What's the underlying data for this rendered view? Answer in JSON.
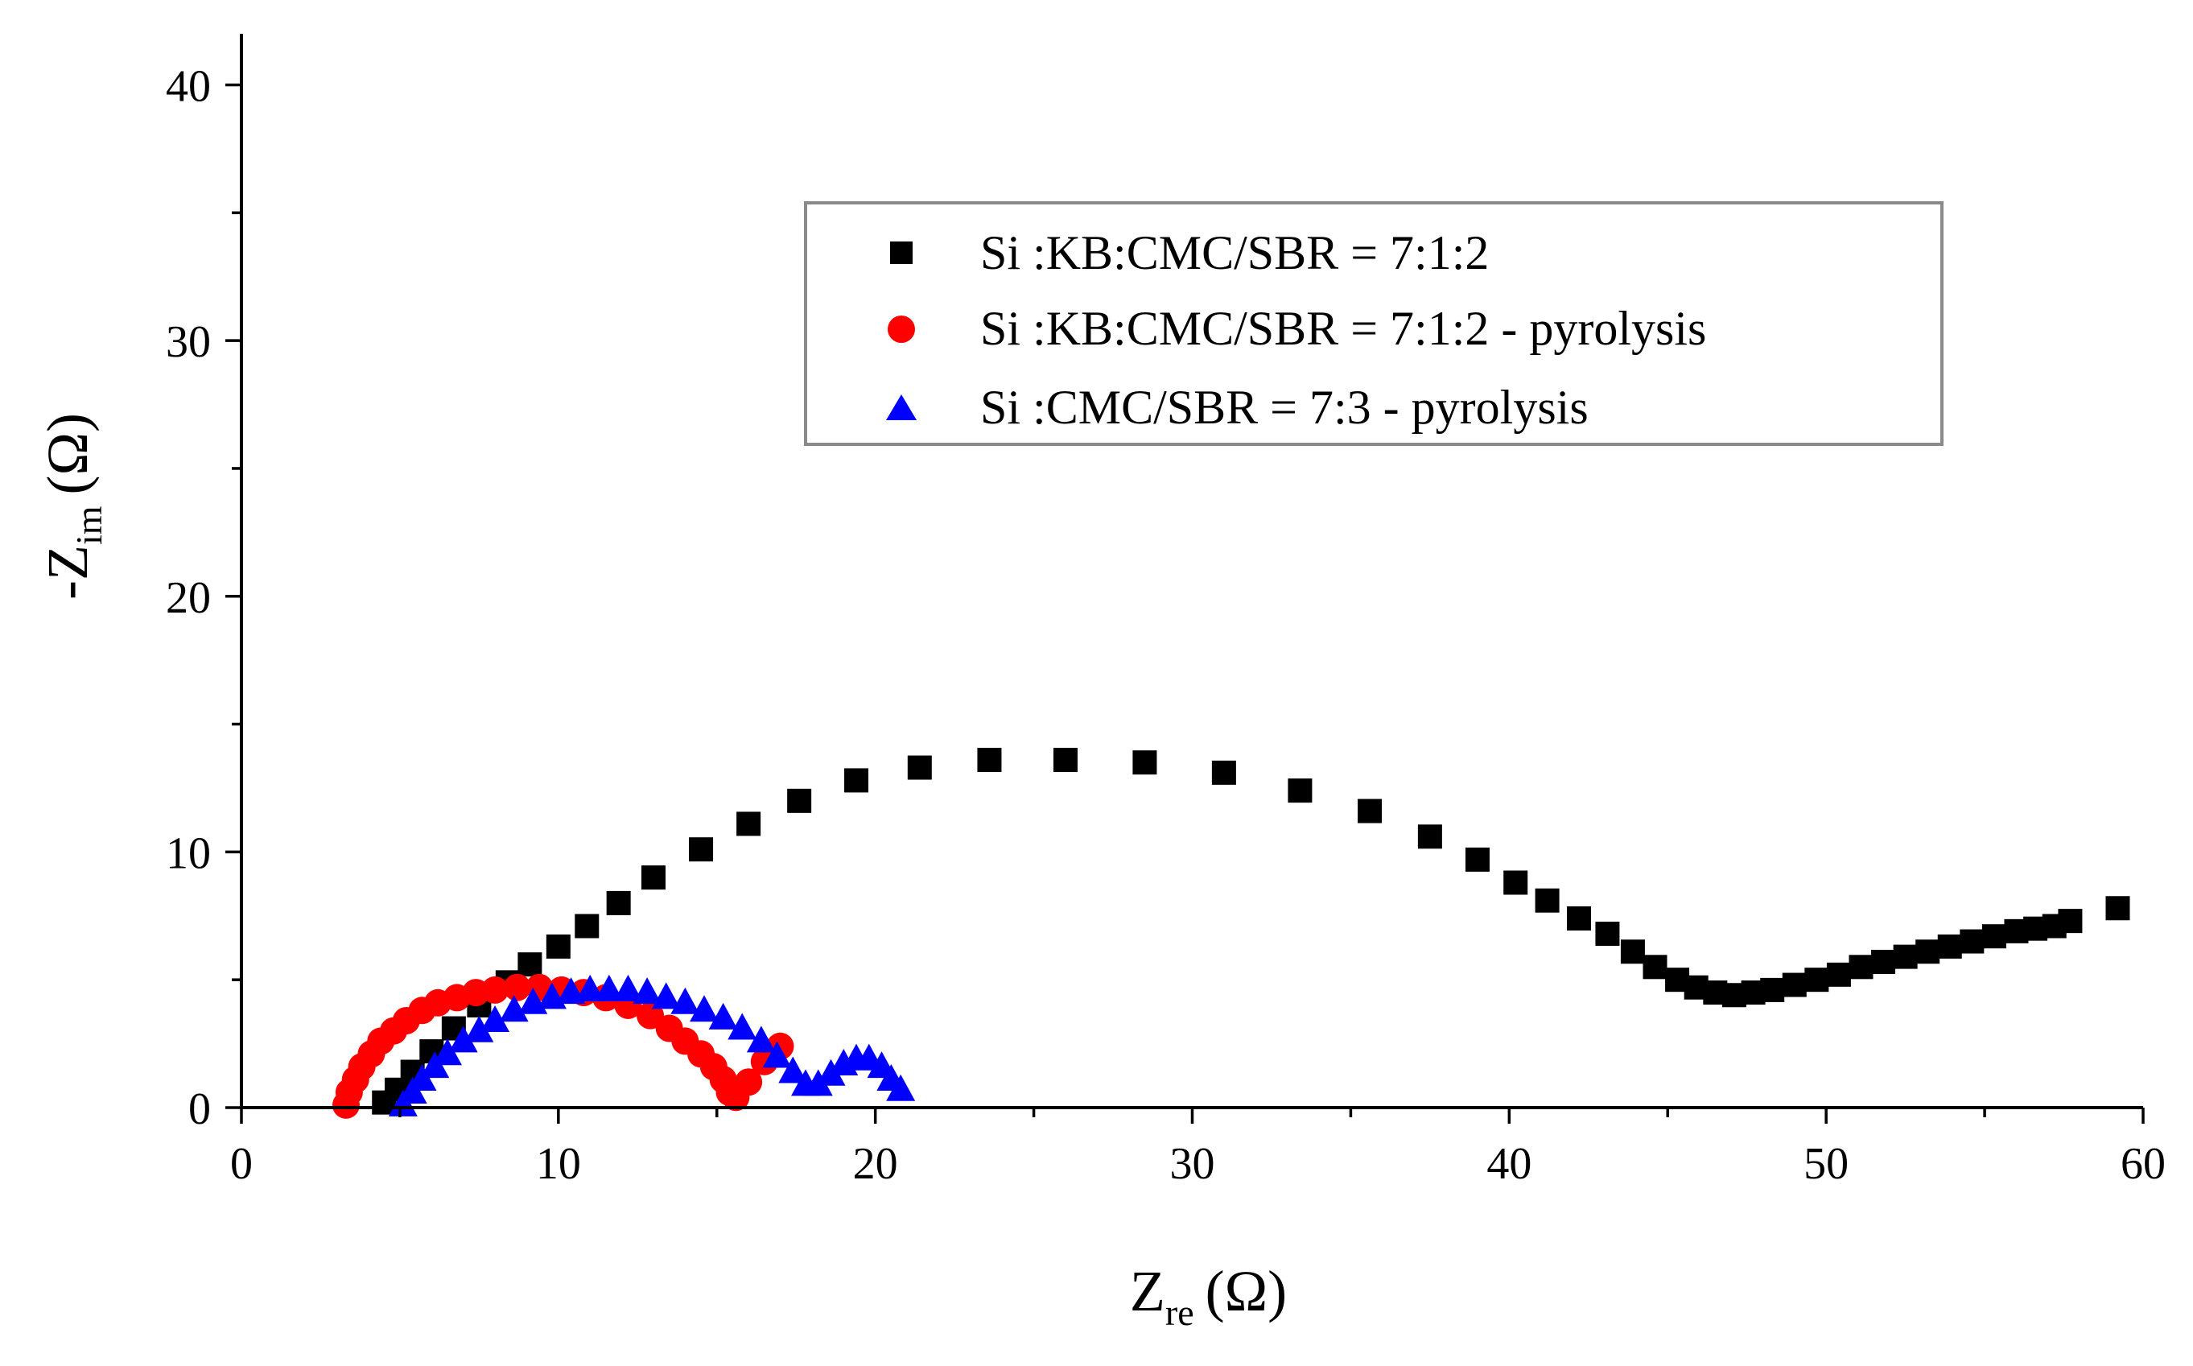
{
  "chart_data": {
    "type": "scatter",
    "title": "",
    "xlabel": {
      "main": "Z",
      "sub": "re",
      "unit": "(Ω)"
    },
    "ylabel": {
      "prefix": "-",
      "main": "Z",
      "sub": "im",
      "unit": "(Ω)"
    },
    "xlim": [
      0,
      60
    ],
    "ylim": [
      0,
      42
    ],
    "xticks": [
      0,
      10,
      20,
      30,
      40,
      50,
      60
    ],
    "yticks": [
      0,
      10,
      20,
      30,
      40
    ],
    "xtick_labels": [
      "0",
      "10",
      "20",
      "30",
      "40",
      "50",
      "60"
    ],
    "ytick_labels": [
      "0",
      "10",
      "20",
      "30",
      "40"
    ],
    "legend_position": "top-right",
    "series": [
      {
        "name": "Si :KB:CMC/SBR = 7:1:2",
        "color": "#000000",
        "marker": "square",
        "x": [
          4.5,
          4.9,
          5.4,
          6.0,
          6.7,
          7.5,
          8.4,
          9.1,
          10.0,
          10.9,
          11.9,
          13.0,
          14.5,
          16.0,
          17.6,
          19.4,
          21.4,
          23.6,
          26.0,
          28.5,
          31.0,
          33.4,
          35.6,
          37.5,
          39.0,
          40.2,
          41.2,
          42.2,
          43.1,
          43.9,
          44.6,
          45.3,
          45.9,
          46.5,
          47.1,
          47.7,
          48.3,
          49.0,
          49.7,
          50.4,
          51.1,
          51.8,
          52.5,
          53.2,
          53.9,
          54.6,
          55.3,
          56.0,
          56.6,
          57.2,
          57.7,
          59.2
        ],
        "y": [
          0.2,
          0.7,
          1.4,
          2.2,
          3.1,
          4.0,
          4.9,
          5.6,
          6.3,
          7.1,
          8.0,
          9.0,
          10.1,
          11.1,
          12.0,
          12.8,
          13.3,
          13.6,
          13.6,
          13.5,
          13.1,
          12.4,
          11.6,
          10.6,
          9.7,
          8.8,
          8.1,
          7.4,
          6.8,
          6.1,
          5.5,
          5.0,
          4.7,
          4.5,
          4.4,
          4.5,
          4.6,
          4.8,
          5.0,
          5.2,
          5.5,
          5.7,
          5.9,
          6.1,
          6.3,
          6.5,
          6.7,
          6.9,
          7.0,
          7.1,
          7.3,
          7.8
        ]
      },
      {
        "name": "Si :KB:CMC/SBR = 7:1:2 - pyrolysis",
        "color": "#ff0000",
        "marker": "circle",
        "x": [
          3.3,
          3.4,
          3.6,
          3.8,
          4.1,
          4.4,
          4.8,
          5.2,
          5.7,
          6.2,
          6.8,
          7.4,
          8.0,
          8.7,
          9.4,
          10.1,
          10.8,
          11.5,
          12.2,
          12.9,
          13.5,
          14.0,
          14.5,
          14.9,
          15.2,
          15.4,
          15.6,
          16.0,
          16.5,
          17.0
        ],
        "y": [
          0.1,
          0.6,
          1.1,
          1.6,
          2.1,
          2.6,
          3.0,
          3.4,
          3.8,
          4.1,
          4.3,
          4.5,
          4.6,
          4.7,
          4.7,
          4.6,
          4.5,
          4.3,
          4.0,
          3.6,
          3.1,
          2.6,
          2.1,
          1.6,
          1.1,
          0.6,
          0.4,
          1.0,
          1.8,
          2.4
        ]
      },
      {
        "name": "Si :CMC/SBR = 7:3 - pyrolysis",
        "color": "#0000ff",
        "marker": "triangle",
        "x": [
          5.1,
          5.4,
          5.7,
          6.1,
          6.5,
          7.0,
          7.5,
          8.0,
          8.6,
          9.2,
          9.8,
          10.4,
          11.0,
          11.6,
          12.2,
          12.8,
          13.4,
          14.0,
          14.6,
          15.2,
          15.8,
          16.4,
          16.9,
          17.4,
          17.8,
          18.2,
          18.6,
          19.0,
          19.4,
          19.8,
          20.2,
          20.5,
          20.8
        ],
        "y": [
          0.1,
          0.6,
          1.1,
          1.6,
          2.1,
          2.6,
          3.0,
          3.4,
          3.8,
          4.1,
          4.3,
          4.5,
          4.6,
          4.6,
          4.6,
          4.5,
          4.3,
          4.1,
          3.8,
          3.5,
          3.1,
          2.6,
          2.0,
          1.4,
          0.9,
          0.9,
          1.3,
          1.7,
          1.9,
          1.9,
          1.6,
          1.1,
          0.7
        ]
      }
    ]
  }
}
